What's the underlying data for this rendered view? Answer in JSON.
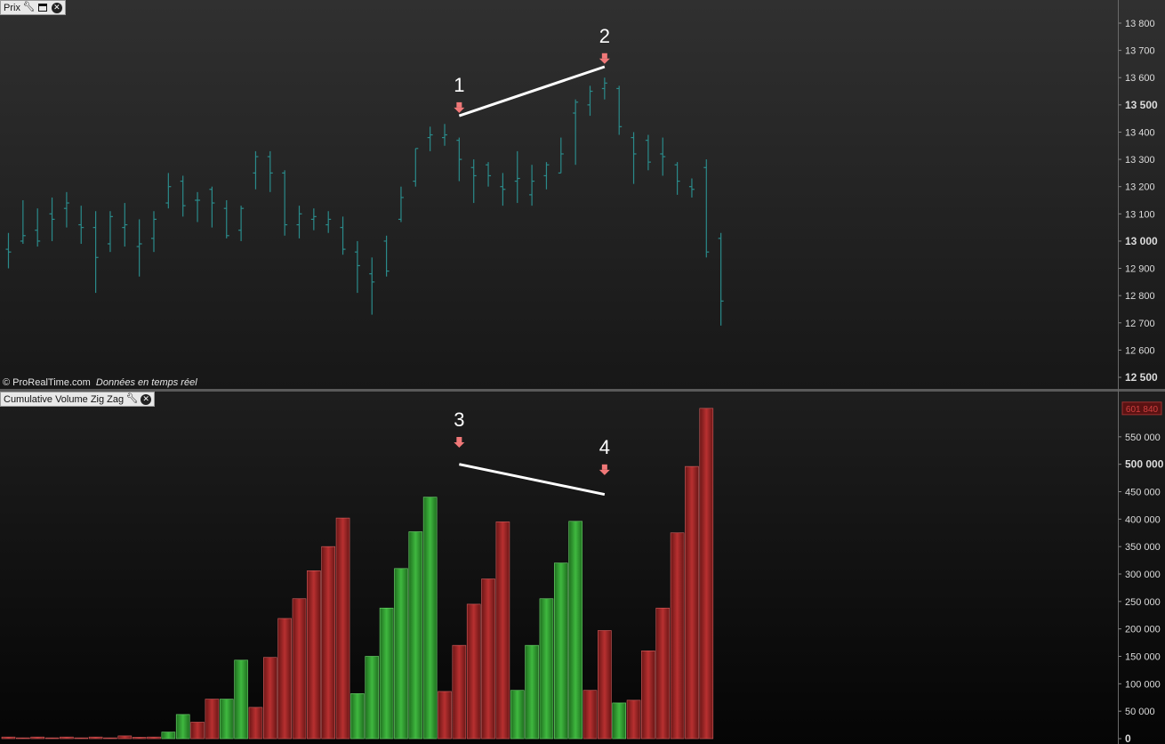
{
  "price_panel": {
    "title": "Prix",
    "footer_source": "© ProRealTime.com",
    "footer_status": "Données en temps réel"
  },
  "volume_panel": {
    "title": "Cumulative Volume Zig Zag",
    "last_value_badge": "601 840"
  },
  "colors": {
    "price_bar": "#2a8a8a",
    "volume_up": "#2f9a2f",
    "volume_down": "#9a2222",
    "annotation_line": "#ffffff",
    "annotation_arrow": "#f07878"
  },
  "annotations": {
    "price": [
      {
        "label": "1",
        "x": 31,
        "y": 13490
      },
      {
        "label": "2",
        "x": 41,
        "y": 13670
      }
    ],
    "volume": [
      {
        "label": "3",
        "x": 31,
        "y": 540000
      },
      {
        "label": "4",
        "x": 41,
        "y": 490000
      }
    ],
    "price_line": [
      [
        31,
        13460
      ],
      [
        41,
        13640
      ]
    ],
    "volume_line": [
      [
        31,
        500000
      ],
      [
        41,
        445000
      ]
    ]
  },
  "chart_data": [
    {
      "type": "bar",
      "subtype": "ohlc",
      "title": "Prix",
      "ylim": [
        12500,
        13850
      ],
      "y_ticks": [
        "13 800",
        "13 700",
        "13 600",
        "13 500",
        "13 400",
        "13 300",
        "13 200",
        "13 100",
        "13 000",
        "12 900",
        "12 800",
        "12 700",
        "12 600",
        "12 500"
      ],
      "y_ticks_bold": [
        "13 500",
        "13 000",
        "12 500"
      ],
      "x": [
        0,
        1,
        2,
        3,
        4,
        5,
        6,
        7,
        8,
        9,
        10,
        11,
        12,
        13,
        14,
        15,
        16,
        17,
        18,
        19,
        20,
        21,
        22,
        23,
        24,
        25,
        26,
        27,
        28,
        29,
        30,
        31,
        32,
        33,
        34,
        35,
        36,
        37,
        38,
        39,
        40,
        41,
        42,
        43,
        44,
        45,
        46,
        47,
        48,
        49
      ],
      "ohlc": [
        [
          12970,
          13030,
          12900,
          12960
        ],
        [
          13000,
          13150,
          12990,
          13020
        ],
        [
          13040,
          13120,
          12980,
          13000
        ],
        [
          13100,
          13160,
          13000,
          13080
        ],
        [
          13120,
          13180,
          13050,
          13140
        ],
        [
          13060,
          13130,
          12990,
          13050
        ],
        [
          13050,
          13110,
          12810,
          12940
        ],
        [
          12990,
          13110,
          12960,
          13090
        ],
        [
          13050,
          13140,
          12980,
          13060
        ],
        [
          12980,
          13080,
          12870,
          12990
        ],
        [
          13010,
          13110,
          12960,
          13080
        ],
        [
          13140,
          13250,
          13120,
          13200
        ],
        [
          13220,
          13240,
          13090,
          13130
        ],
        [
          13150,
          13180,
          13070,
          13150
        ],
        [
          13190,
          13200,
          13050,
          13140
        ],
        [
          13120,
          13150,
          13010,
          13020
        ],
        [
          13040,
          13130,
          13000,
          13120
        ],
        [
          13250,
          13330,
          13190,
          13310
        ],
        [
          13310,
          13330,
          13180,
          13250
        ],
        [
          13250,
          13260,
          13020,
          13060
        ],
        [
          13060,
          13130,
          13010,
          13100
        ],
        [
          13080,
          13120,
          13040,
          13090
        ],
        [
          13060,
          13110,
          13030,
          13080
        ],
        [
          13050,
          13090,
          12950,
          12970
        ],
        [
          12960,
          13000,
          12810,
          12910
        ],
        [
          12880,
          12940,
          12730,
          12850
        ],
        [
          13000,
          13020,
          12870,
          12890
        ],
        [
          13080,
          13200,
          13070,
          13160
        ],
        [
          13220,
          13340,
          13200,
          13340
        ],
        [
          13380,
          13420,
          13330,
          13390
        ],
        [
          13380,
          13430,
          13350,
          13390
        ],
        [
          13370,
          13380,
          13220,
          13300
        ],
        [
          13270,
          13300,
          13140,
          13240
        ],
        [
          13280,
          13290,
          13200,
          13240
        ],
        [
          13200,
          13250,
          13130,
          13190
        ],
        [
          13220,
          13330,
          13140,
          13230
        ],
        [
          13170,
          13280,
          13130,
          13220
        ],
        [
          13240,
          13290,
          13190,
          13280
        ],
        [
          13250,
          13380,
          13250,
          13320
        ],
        [
          13470,
          13520,
          13280,
          13510
        ],
        [
          13500,
          13570,
          13460,
          13550
        ],
        [
          13560,
          13600,
          13520,
          13580
        ],
        [
          13560,
          13570,
          13390,
          13420
        ],
        [
          13380,
          13400,
          13210,
          13320
        ],
        [
          13370,
          13390,
          13260,
          13290
        ],
        [
          13320,
          13380,
          13240,
          13310
        ],
        [
          13280,
          13290,
          13170,
          13220
        ],
        [
          13200,
          13230,
          13160,
          13190
        ],
        [
          13270,
          13300,
          12940,
          12960
        ],
        [
          13010,
          13030,
          12690,
          12780
        ]
      ]
    },
    {
      "type": "bar",
      "title": "Cumulative Volume Zig Zag",
      "ylim": [
        0,
        600000
      ],
      "y_ticks": [
        "550 000",
        "500 000",
        "450 000",
        "400 000",
        "350 000",
        "300 000",
        "250 000",
        "200 000",
        "150 000",
        "100 000",
        "50 000",
        "0"
      ],
      "y_ticks_bold": [
        "500 000",
        "0"
      ],
      "x": [
        0,
        1,
        2,
        3,
        4,
        5,
        6,
        7,
        8,
        9,
        10,
        11,
        12,
        13,
        14,
        15,
        16,
        17,
        18,
        19,
        20,
        21,
        22,
        23,
        24,
        25,
        26,
        27,
        28,
        29,
        30,
        31,
        32,
        33,
        34,
        35,
        36,
        37,
        38,
        39,
        40,
        41,
        42,
        43,
        44,
        45,
        46,
        47,
        48,
        49
      ],
      "values": [
        3000,
        1500,
        3000,
        1500,
        3000,
        1500,
        3000,
        1500,
        5000,
        2500,
        3000,
        12000,
        44000,
        30000,
        72000,
        72000,
        143000,
        57000,
        148000,
        219000,
        255000,
        306000,
        350000,
        402000,
        82000,
        150000,
        238000,
        310000,
        377000,
        440000,
        86000,
        170000,
        245000,
        291000,
        395000,
        88000,
        170000,
        255000,
        320000,
        396000,
        88000,
        197000,
        65000,
        70000,
        160000,
        238000,
        375000,
        496000,
        601840,
        0
      ],
      "direction": [
        "down",
        "down",
        "down",
        "down",
        "down",
        "down",
        "down",
        "down",
        "down",
        "down",
        "down",
        "up",
        "up",
        "down",
        "down",
        "up",
        "up",
        "down",
        "down",
        "down",
        "down",
        "down",
        "down",
        "down",
        "up",
        "up",
        "up",
        "up",
        "up",
        "up",
        "down",
        "down",
        "down",
        "down",
        "down",
        "up",
        "up",
        "up",
        "up",
        "up",
        "down",
        "down",
        "up",
        "down",
        "down",
        "down",
        "down",
        "down",
        "down",
        "down"
      ]
    }
  ]
}
